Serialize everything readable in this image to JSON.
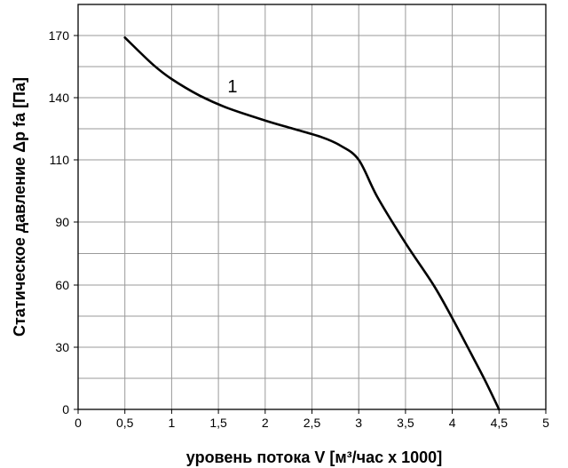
{
  "chart_data": {
    "type": "line",
    "xlabel": "уровень потока  V [м³/час x 1000]",
    "ylabel": "Статическое давление  Δp fa [Па]",
    "xlim": [
      0,
      5
    ],
    "ylim": [
      0,
      180
    ],
    "x_ticks": [
      0,
      0.5,
      1,
      1.5,
      2,
      2.5,
      3,
      3.5,
      4,
      4.5,
      5
    ],
    "x_tick_labels": [
      "0",
      "0,5",
      "1",
      "1,5",
      "2",
      "2,5",
      "3",
      "3,5",
      "4",
      "4,5",
      "5"
    ],
    "y_ticks": [
      0,
      30,
      60,
      90,
      110,
      140,
      170
    ],
    "y_tick_labels": [
      "0",
      "30",
      "60",
      "90",
      "110",
      "140",
      "170"
    ],
    "y_grid": [
      0,
      15,
      30,
      45,
      60,
      75,
      90,
      110,
      125,
      140,
      155,
      170,
      180
    ],
    "x_grid": [
      0,
      0.5,
      1,
      1.5,
      2,
      2.5,
      3,
      3.5,
      4,
      4.5,
      5
    ],
    "grid": true,
    "series": [
      {
        "name": "1",
        "x": [
          0.5,
          0.8,
          1.0,
          1.3,
          1.6,
          2.0,
          2.3,
          2.6,
          2.8,
          3.0,
          3.2,
          3.5,
          3.8,
          4.0,
          4.2,
          4.35,
          4.5
        ],
        "values": [
          169,
          156,
          149,
          141,
          135,
          129,
          125,
          121,
          117,
          110,
          98,
          80,
          60,
          44,
          27,
          14,
          0
        ]
      }
    ]
  }
}
